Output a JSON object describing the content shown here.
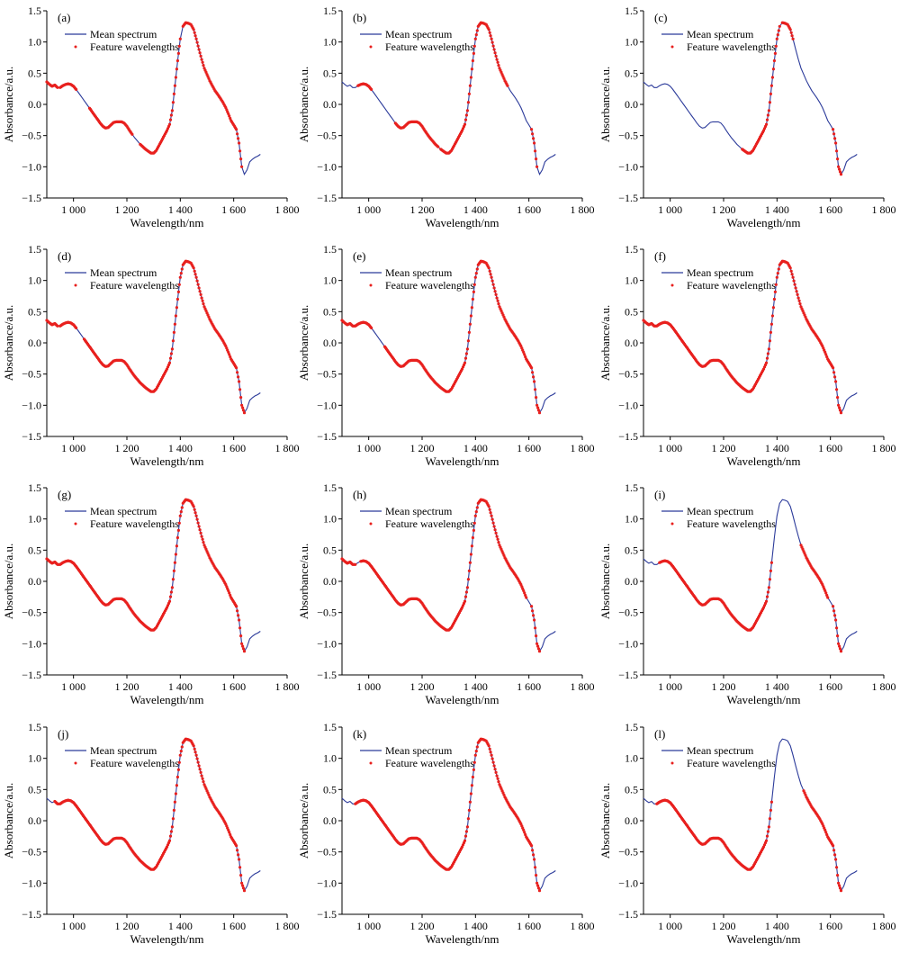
{
  "chart_data": {
    "type": "line",
    "xlabel": "Wavelength/nm",
    "ylabel": "Absorbance/a.u.",
    "xlim": [
      900,
      1800
    ],
    "ylim": [
      -1.5,
      1.5
    ],
    "xticks": [
      1000,
      1200,
      1400,
      1600,
      1800
    ],
    "xtick_labels": [
      "1 000",
      "1 200",
      "1 400",
      "1 600",
      "1 800"
    ],
    "yticks": [
      -1.5,
      -1.0,
      -0.5,
      0.0,
      0.5,
      1.0,
      1.5
    ],
    "ytick_labels": [
      "−1.5",
      "−1.0",
      "−0.5",
      "0.0",
      "0.5",
      "1.0",
      "1.5"
    ],
    "legend_placement": "top-left",
    "legend": [
      "Mean spectrum",
      "Feature wavelengths"
    ],
    "colors": {
      "mean": "#2b3a9a",
      "feature": "#e8201e"
    },
    "mean_spectrum": {
      "x": [
        900,
        910,
        920,
        930,
        940,
        950,
        960,
        970,
        980,
        990,
        1000,
        1010,
        1020,
        1030,
        1040,
        1050,
        1060,
        1070,
        1080,
        1090,
        1100,
        1110,
        1120,
        1130,
        1140,
        1150,
        1160,
        1170,
        1180,
        1190,
        1200,
        1210,
        1220,
        1230,
        1240,
        1250,
        1260,
        1270,
        1280,
        1290,
        1300,
        1310,
        1320,
        1330,
        1340,
        1350,
        1360,
        1370,
        1380,
        1390,
        1400,
        1410,
        1420,
        1430,
        1440,
        1450,
        1460,
        1470,
        1480,
        1490,
        1500,
        1510,
        1520,
        1530,
        1540,
        1550,
        1560,
        1570,
        1580,
        1590,
        1600,
        1610,
        1620,
        1630,
        1640,
        1650,
        1660,
        1670,
        1680,
        1690,
        1700
      ],
      "y": [
        0.36,
        0.32,
        0.29,
        0.31,
        0.27,
        0.27,
        0.3,
        0.32,
        0.33,
        0.32,
        0.29,
        0.24,
        0.18,
        0.12,
        0.06,
        0.0,
        -0.06,
        -0.12,
        -0.18,
        -0.24,
        -0.3,
        -0.35,
        -0.38,
        -0.37,
        -0.33,
        -0.29,
        -0.28,
        -0.28,
        -0.28,
        -0.3,
        -0.35,
        -0.42,
        -0.48,
        -0.54,
        -0.59,
        -0.64,
        -0.68,
        -0.72,
        -0.75,
        -0.78,
        -0.78,
        -0.74,
        -0.66,
        -0.58,
        -0.5,
        -0.42,
        -0.32,
        -0.1,
        0.3,
        0.7,
        1.05,
        1.25,
        1.31,
        1.3,
        1.28,
        1.2,
        1.05,
        0.88,
        0.72,
        0.58,
        0.48,
        0.38,
        0.3,
        0.22,
        0.16,
        0.1,
        0.03,
        -0.05,
        -0.15,
        -0.26,
        -0.33,
        -0.4,
        -0.62,
        -1.0,
        -1.12,
        -1.05,
        -0.92,
        -0.88,
        -0.85,
        -0.83,
        -0.8
      ]
    },
    "panels": [
      {
        "label": "(a)",
        "sel_ranges": [
          [
            0,
            4
          ],
          [
            5,
            11
          ],
          [
            16,
            32
          ],
          [
            35,
            50
          ],
          [
            51,
            73
          ]
        ]
      },
      {
        "label": "(b)",
        "sel_ranges": [
          [
            6,
            11
          ],
          [
            20,
            36
          ],
          [
            37,
            54
          ],
          [
            54,
            62
          ],
          [
            71,
            73
          ]
        ]
      },
      {
        "label": "(c)",
        "sel_ranges": [
          [
            37,
            51
          ],
          [
            52,
            56
          ],
          [
            71,
            74
          ]
        ]
      },
      {
        "label": "(d)",
        "sel_ranges": [
          [
            0,
            4
          ],
          [
            5,
            11
          ],
          [
            14,
            74
          ]
        ]
      },
      {
        "label": "(e)",
        "sel_ranges": [
          [
            0,
            11
          ],
          [
            16,
            74
          ]
        ]
      },
      {
        "label": "(f)",
        "sel_ranges": [
          [
            0,
            74
          ]
        ]
      },
      {
        "label": "(g)",
        "sel_ranges": [
          [
            0,
            71
          ],
          [
            71,
            74
          ]
        ]
      },
      {
        "label": "(h)",
        "sel_ranges": [
          [
            0,
            5
          ],
          [
            7,
            69
          ],
          [
            71,
            74
          ]
        ]
      },
      {
        "label": "(i)",
        "sel_ranges": [
          [
            6,
            48
          ],
          [
            59,
            69
          ],
          [
            71,
            74
          ]
        ]
      },
      {
        "label": "(j)",
        "sel_ranges": [
          [
            3,
            74
          ]
        ]
      },
      {
        "label": "(k)",
        "sel_ranges": [
          [
            5,
            74
          ]
        ]
      },
      {
        "label": "(l)",
        "sel_ranges": [
          [
            5,
            48
          ],
          [
            60,
            74
          ]
        ]
      }
    ]
  }
}
